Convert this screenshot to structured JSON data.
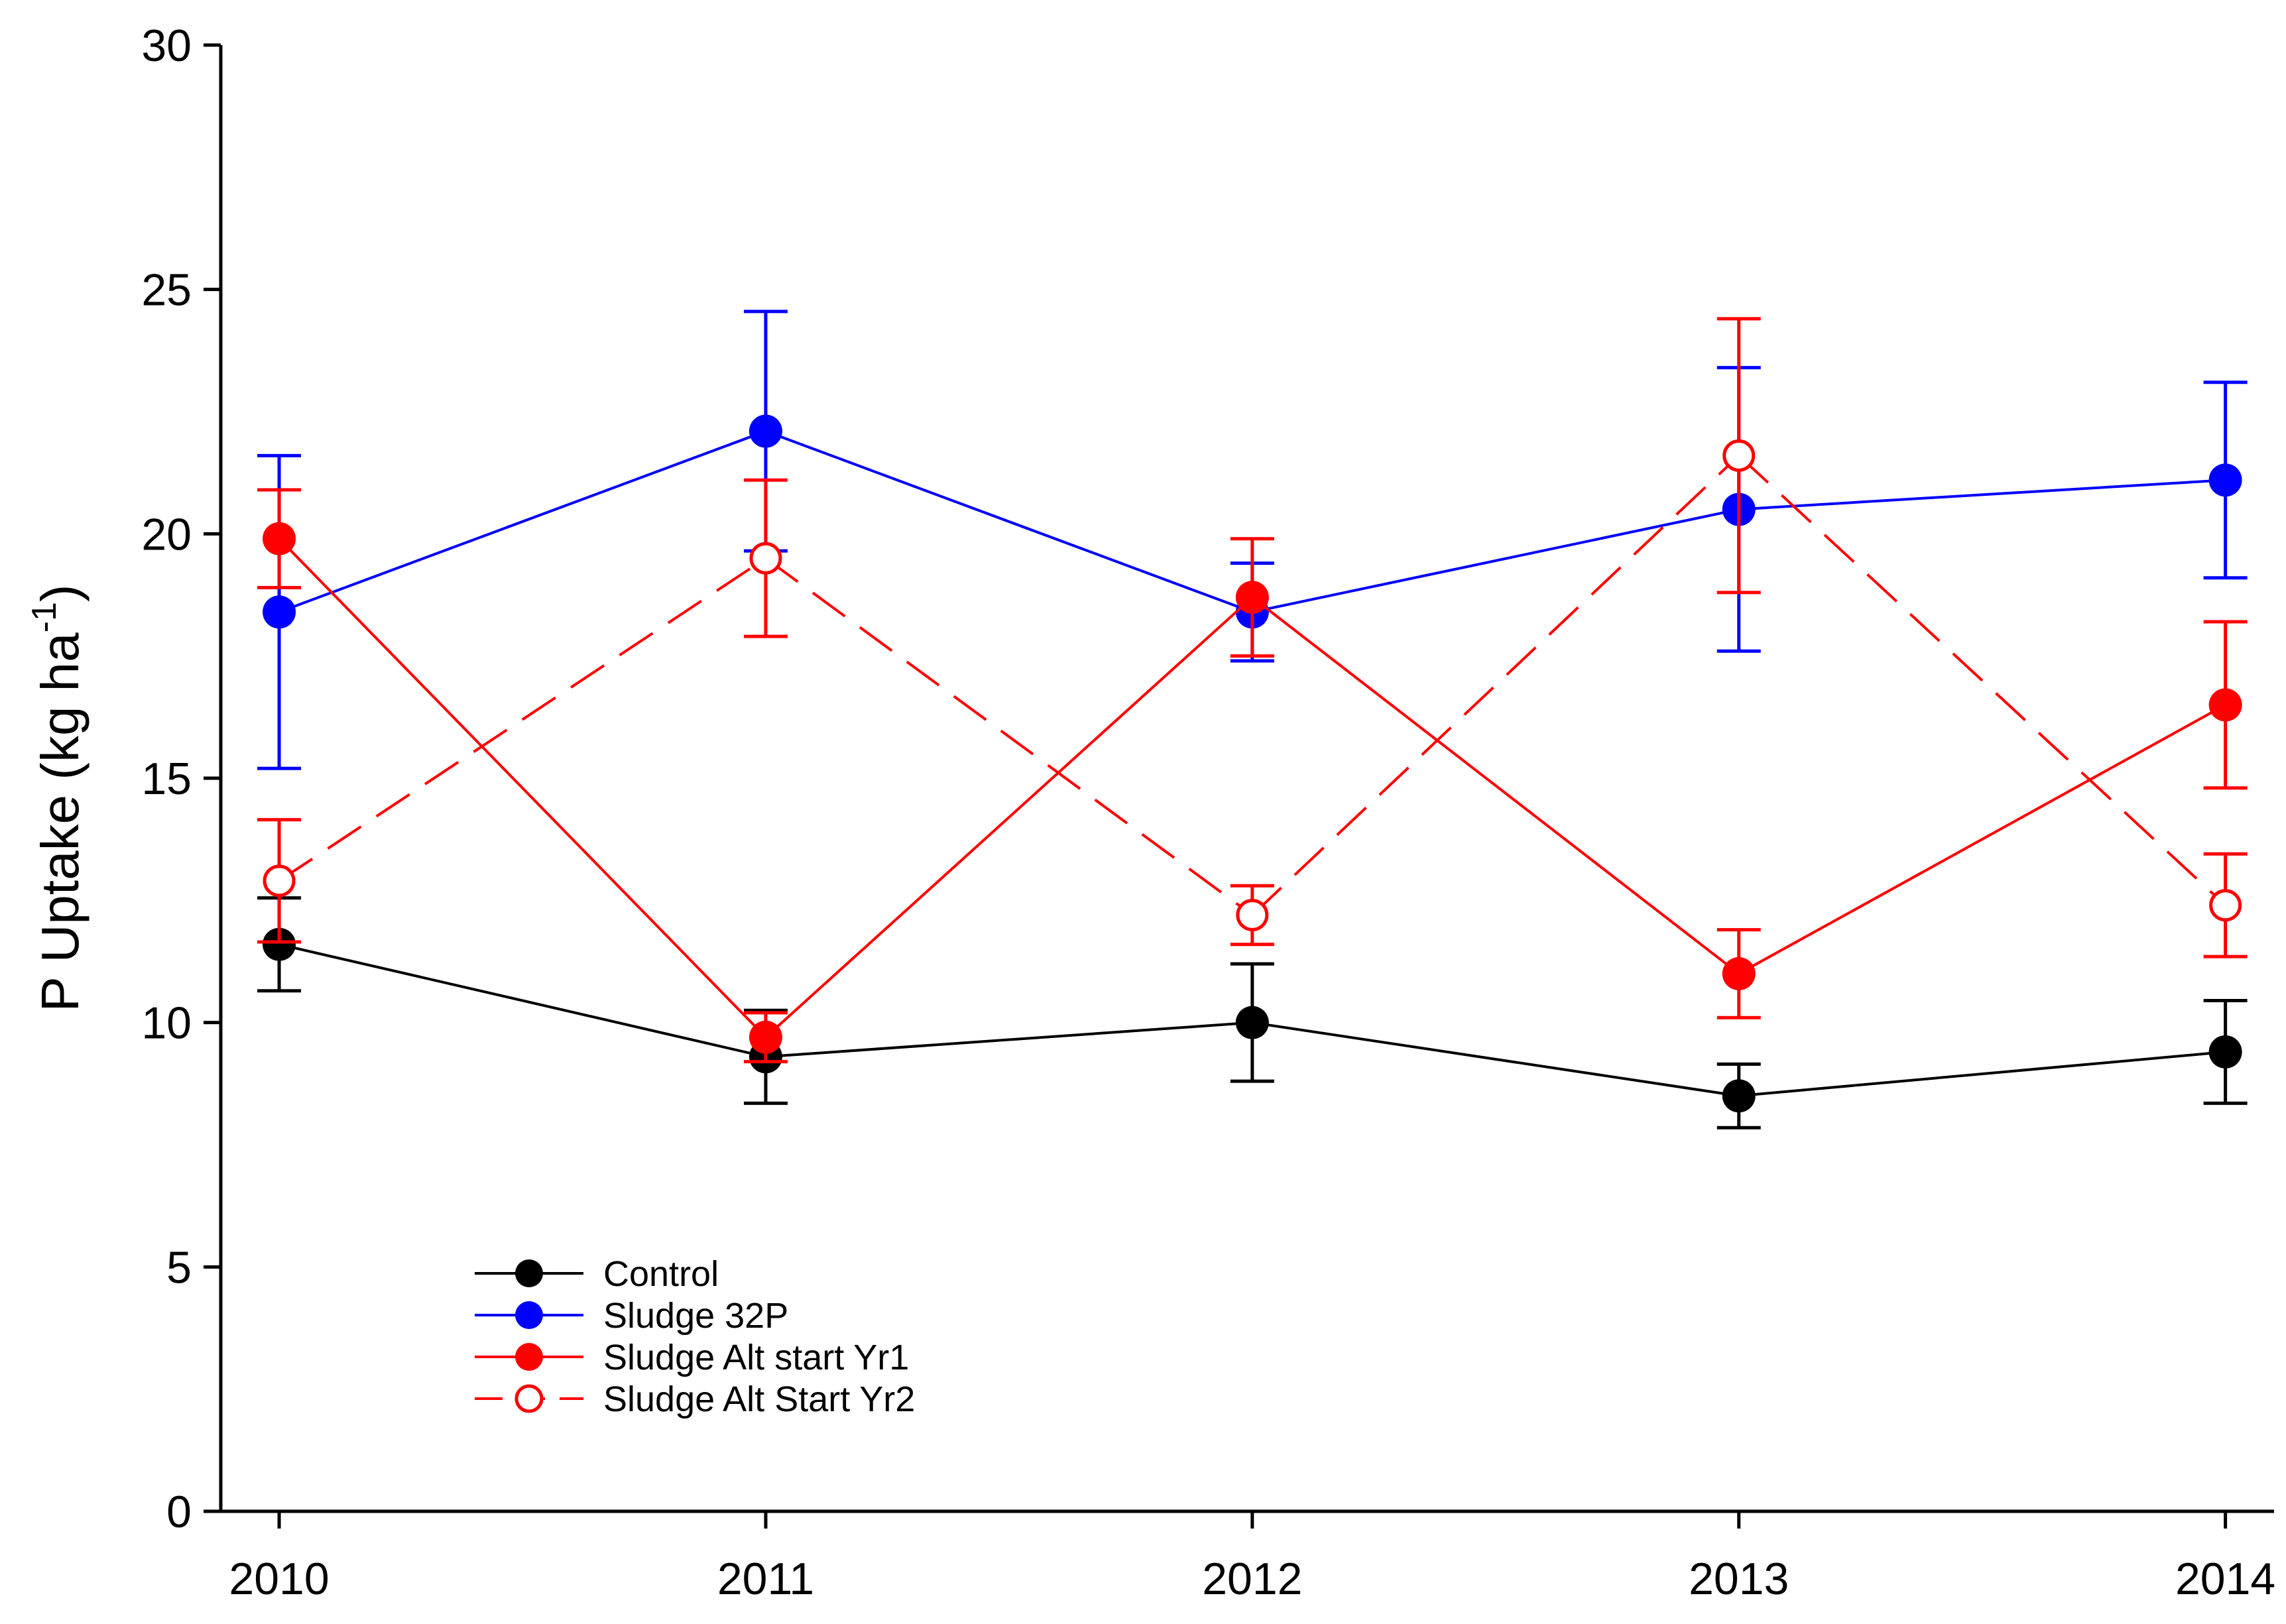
{
  "chart_data": {
    "type": "line",
    "title": "",
    "xlabel": "",
    "ylabel": "P Uptake (kg ha",
    "ylabel_superscript": "-1",
    "ylabel_suffix": ")",
    "x": [
      2010,
      2011,
      2012,
      2013,
      2014
    ],
    "x_tick_labels": [
      "2010",
      "2011",
      "2012",
      "2013",
      "2014"
    ],
    "y_ticks": [
      0,
      5,
      10,
      15,
      20,
      25,
      30
    ],
    "y_tick_labels": [
      "0",
      "5",
      "10",
      "15",
      "20",
      "25",
      "30"
    ],
    "ylim": [
      0,
      30
    ],
    "xlim": [
      2009.88,
      2014.1
    ],
    "grid": false,
    "legend_position": "bottom-left",
    "series": [
      {
        "name": "Control",
        "color": "#000000",
        "marker": "filled-circle",
        "line_style": "solid",
        "values": [
          11.6,
          9.3,
          10.0,
          8.5,
          9.4
        ],
        "errors": [
          0.95,
          0.95,
          1.2,
          0.65,
          1.05
        ]
      },
      {
        "name": "Sludge 32P",
        "color": "#0000ff",
        "marker": "filled-circle",
        "line_style": "solid",
        "values": [
          18.4,
          22.1,
          18.4,
          20.5,
          21.1
        ],
        "errors": [
          3.2,
          2.45,
          1.0,
          2.9,
          2.0
        ]
      },
      {
        "name": "Sludge Alt start Yr1",
        "color": "#ff0000",
        "marker": "filled-circle",
        "line_style": "solid",
        "values": [
          19.9,
          9.7,
          18.7,
          11.0,
          16.5
        ],
        "errors": [
          1.0,
          0.5,
          1.2,
          0.9,
          1.7
        ]
      },
      {
        "name": "Sludge Alt Start Yr2",
        "color": "#ff0000",
        "marker": "open-circle",
        "line_style": "dashed",
        "values": [
          12.9,
          19.5,
          12.2,
          21.6,
          12.4
        ],
        "errors": [
          1.25,
          1.6,
          0.6,
          2.8,
          1.05
        ]
      }
    ]
  }
}
